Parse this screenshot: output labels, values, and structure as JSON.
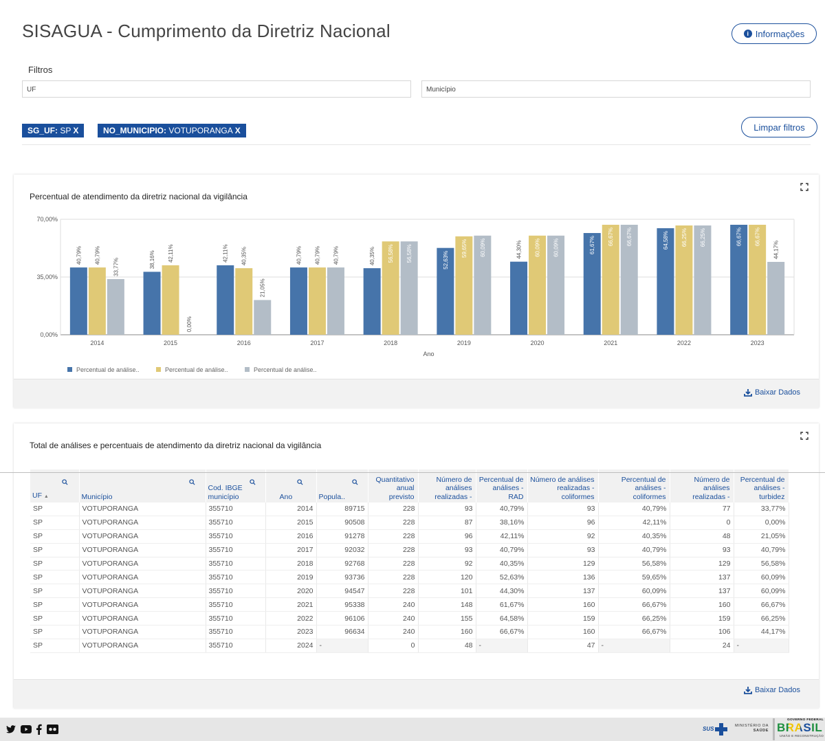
{
  "header": {
    "title": "SISAGUA - Cumprimento da Diretriz Nacional",
    "info_button": "Informações"
  },
  "filters": {
    "label": "Filtros",
    "uf_placeholder": "UF",
    "municipio_placeholder": "Município",
    "chips": [
      {
        "key": "SG_UF:",
        "value": "SP",
        "close": "X"
      },
      {
        "key": "NO_MUNICIPIO:",
        "value": "VOTUPORANGA",
        "close": "X"
      }
    ],
    "clear_button": "Limpar filtros"
  },
  "chart_card": {
    "title": "Percentual de atendimento da diretriz nacional da vigilância",
    "download": "Baixar Dados"
  },
  "chart_data": {
    "type": "bar",
    "title": "Percentual de atendimento da diretriz nacional da vigilância",
    "xlabel": "Ano",
    "ylabel": "",
    "ylim": [
      0,
      70
    ],
    "yticks": [
      "0,00%",
      "35,00%",
      "70,00%"
    ],
    "grid": true,
    "legend_position": "bottom-left",
    "categories": [
      "2014",
      "2015",
      "2016",
      "2017",
      "2018",
      "2019",
      "2020",
      "2021",
      "2022",
      "2023"
    ],
    "series": [
      {
        "name": "Percentual de análise..",
        "color": "#4674aa",
        "values": [
          40.79,
          38.16,
          42.11,
          40.79,
          40.35,
          52.63,
          44.3,
          61.67,
          64.58,
          66.67
        ],
        "labels": [
          "40,79%",
          "38,16%",
          "42,11%",
          "40,79%",
          "40,35%",
          "52,63%",
          "44,30%",
          "61,67%",
          "64,58%",
          "66,67%"
        ]
      },
      {
        "name": "Percentual de análise..",
        "color": "#e0c976",
        "values": [
          40.79,
          42.11,
          40.35,
          40.79,
          56.58,
          59.65,
          60.09,
          66.67,
          66.25,
          66.67
        ],
        "labels": [
          "40,79%",
          "42,11%",
          "40,35%",
          "40,79%",
          "56,58%",
          "59,65%",
          "60,09%",
          "66,67%",
          "66,25%",
          "66,67%"
        ]
      },
      {
        "name": "Percentual de análise..",
        "color": "#b3bdc7",
        "values": [
          33.77,
          0,
          21.05,
          40.79,
          56.58,
          60.09,
          60.09,
          66.67,
          66.25,
          44.17
        ],
        "labels": [
          "33,77%",
          "0,00%",
          "21,05%",
          "40,79%",
          "56,58%",
          "60,09%",
          "60,09%",
          "66,67%",
          "66,25%",
          "44,17%"
        ]
      }
    ]
  },
  "table_card": {
    "title": "Total de análises e percentuais de atendimento da diretriz nacional da vigilância",
    "download": "Baixar Dados",
    "headers": [
      "UF",
      "Município",
      "Cod. IBGE município",
      "Ano",
      "Popula..",
      "Quantitativo anual previsto",
      "Número de análises realizadas -",
      "Percentual de análises - RAD",
      "Número de análises realizadas - coliformes",
      "Percentual de análises - coliformes",
      "Número de análises realizadas -",
      "Percentual de análises - turbidez"
    ],
    "rows": [
      [
        "SP",
        "VOTUPORANGA",
        "355710",
        "2014",
        "89715",
        "228",
        "93",
        "40,79%",
        "93",
        "40,79%",
        "77",
        "33,77%"
      ],
      [
        "SP",
        "VOTUPORANGA",
        "355710",
        "2015",
        "90508",
        "228",
        "87",
        "38,16%",
        "96",
        "42,11%",
        "0",
        "0,00%"
      ],
      [
        "SP",
        "VOTUPORANGA",
        "355710",
        "2016",
        "91278",
        "228",
        "96",
        "42,11%",
        "92",
        "40,35%",
        "48",
        "21,05%"
      ],
      [
        "SP",
        "VOTUPORANGA",
        "355710",
        "2017",
        "92032",
        "228",
        "93",
        "40,79%",
        "93",
        "40,79%",
        "93",
        "40,79%"
      ],
      [
        "SP",
        "VOTUPORANGA",
        "355710",
        "2018",
        "92768",
        "228",
        "92",
        "40,35%",
        "129",
        "56,58%",
        "129",
        "56,58%"
      ],
      [
        "SP",
        "VOTUPORANGA",
        "355710",
        "2019",
        "93736",
        "228",
        "120",
        "52,63%",
        "136",
        "59,65%",
        "137",
        "60,09%"
      ],
      [
        "SP",
        "VOTUPORANGA",
        "355710",
        "2020",
        "94547",
        "228",
        "101",
        "44,30%",
        "137",
        "60,09%",
        "137",
        "60,09%"
      ],
      [
        "SP",
        "VOTUPORANGA",
        "355710",
        "2021",
        "95338",
        "240",
        "148",
        "61,67%",
        "160",
        "66,67%",
        "160",
        "66,67%"
      ],
      [
        "SP",
        "VOTUPORANGA",
        "355710",
        "2022",
        "96106",
        "240",
        "155",
        "64,58%",
        "159",
        "66,25%",
        "159",
        "66,25%"
      ],
      [
        "SP",
        "VOTUPORANGA",
        "355710",
        "2023",
        "96634",
        "240",
        "160",
        "66,67%",
        "160",
        "66,67%",
        "106",
        "44,17%"
      ],
      [
        "SP",
        "VOTUPORANGA",
        "355710",
        "2024",
        "-",
        "0",
        "48",
        "-",
        "47",
        "-",
        "24",
        "-"
      ]
    ]
  },
  "footer": {
    "social_icons": [
      "twitter-icon",
      "youtube-icon",
      "facebook-icon",
      "flickr-icon"
    ],
    "sus_text": "SUS",
    "ministerio_line1": "MINISTÉRIO DA",
    "ministerio_line2": "SAÚDE",
    "gov_top": "GOVERNO FEDERAL",
    "gov_main": "BRASIL",
    "gov_bottom": "UNIÃO E RECONSTRUÇÃO"
  }
}
